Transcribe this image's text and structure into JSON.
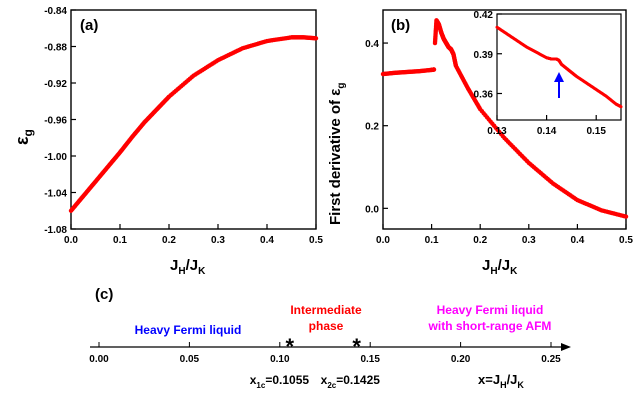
{
  "chart_data": [
    {
      "panel_label": "(a)",
      "type": "scatter",
      "xlabel": "J_H/J_K",
      "ylabel": "ε_g",
      "xlim": [
        0.0,
        0.5
      ],
      "ylim": [
        -1.08,
        -0.84
      ],
      "xticks": [
        "0.0",
        "0.1",
        "0.2",
        "0.3",
        "0.4",
        "0.5"
      ],
      "yticks": [
        "-1.08",
        "-1.04",
        "-1.00",
        "-0.96",
        "-0.92",
        "-0.88",
        "-0.84"
      ],
      "series": [
        {
          "color": "#ff0000",
          "x": [
            0.0,
            0.025,
            0.05,
            0.075,
            0.1,
            0.125,
            0.15,
            0.175,
            0.2,
            0.25,
            0.3,
            0.35,
            0.4,
            0.45,
            0.475,
            0.5
          ],
          "y": [
            -1.06,
            -1.044,
            -1.028,
            -1.012,
            -0.996,
            -0.979,
            -0.963,
            -0.949,
            -0.935,
            -0.912,
            -0.895,
            -0.882,
            -0.874,
            -0.87,
            -0.87,
            -0.871
          ]
        }
      ]
    },
    {
      "panel_label": "(b)",
      "type": "scatter",
      "xlabel": "J_H/J_K",
      "ylabel": "First derivative of ε_g",
      "xlim": [
        0.0,
        0.5
      ],
      "ylim": [
        -0.05,
        0.48
      ],
      "xticks": [
        "0.0",
        "0.1",
        "0.2",
        "0.3",
        "0.4",
        "0.5"
      ],
      "yticks": [
        "0.0",
        "0.2",
        "0.4"
      ],
      "series": [
        {
          "color": "#ff0000",
          "x": [
            0.0,
            0.025,
            0.05,
            0.075,
            0.1,
            0.105
          ],
          "y": [
            0.325,
            0.328,
            0.33,
            0.332,
            0.335,
            0.336
          ]
        },
        {
          "color": "#ff0000",
          "x": [
            0.107,
            0.11,
            0.115,
            0.12,
            0.125,
            0.13,
            0.135,
            0.14,
            0.145,
            0.15,
            0.175,
            0.2,
            0.25,
            0.3,
            0.35,
            0.4,
            0.45,
            0.5
          ],
          "y": [
            0.4,
            0.455,
            0.445,
            0.425,
            0.41,
            0.4,
            0.39,
            0.385,
            0.373,
            0.345,
            0.29,
            0.24,
            0.17,
            0.11,
            0.06,
            0.02,
            -0.005,
            -0.02
          ]
        }
      ],
      "inset": {
        "xlim": [
          0.13,
          0.155
        ],
        "ylim": [
          0.34,
          0.42
        ],
        "xticks": [
          "0.13",
          "0.14",
          "0.15"
        ],
        "yticks": [
          "0.36",
          "0.39",
          "0.42"
        ],
        "series": [
          {
            "color": "#ff0000",
            "x": [
              0.13,
              0.132,
              0.134,
              0.136,
              0.138,
              0.14,
              0.141,
              0.142,
              0.1425,
              0.143,
              0.144,
              0.145,
              0.146,
              0.148,
              0.15,
              0.152,
              0.154,
              0.155
            ],
            "y": [
              0.41,
              0.405,
              0.4,
              0.395,
              0.391,
              0.387,
              0.386,
              0.386,
              0.385,
              0.382,
              0.379,
              0.376,
              0.373,
              0.368,
              0.363,
              0.358,
              0.352,
              0.35
            ]
          }
        ],
        "arrow_x": 0.1425,
        "arrow_color": "#0000ff"
      }
    },
    {
      "panel_label": "(c)",
      "type": "phase_diagram",
      "xlim": [
        -0.005,
        0.265
      ],
      "ticks": [
        "0.00",
        "0.05",
        "0.10",
        "0.15",
        "0.20",
        "0.25"
      ],
      "axis_label": "x=J_H/J_K",
      "critical_points": [
        {
          "x": 0.1055,
          "label": "x_1c=0.1055"
        },
        {
          "x": 0.1425,
          "label": "x_2c=0.1425"
        }
      ],
      "phases": [
        {
          "lines": [
            "Heavy Fermi liquid"
          ],
          "color": "#0000ff"
        },
        {
          "lines": [
            "Intermediate",
            "phase"
          ],
          "color": "#ff0000"
        },
        {
          "lines": [
            "Heavy Fermi liquid",
            "with short-range AFM"
          ],
          "color": "#ff00ff"
        }
      ]
    }
  ]
}
